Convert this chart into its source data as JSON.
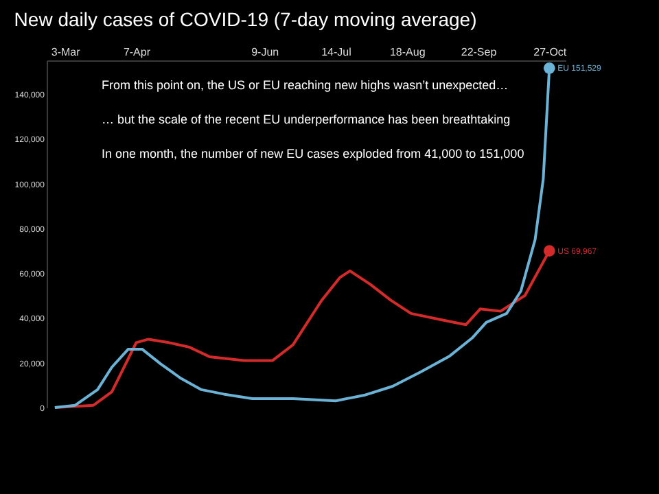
{
  "chart_data": {
    "type": "line",
    "title": "New daily cases of COVID-19 (7-day moving average)",
    "xlim": [
      "--02-22",
      "--11-04"
    ],
    "ylim": [
      0,
      155000
    ],
    "xticks": [
      {
        "value": "--03-03",
        "label": "3-Mar"
      },
      {
        "value": "--04-07",
        "label": "7-Apr"
      },
      {
        "value": "--06-09",
        "label": "9-Jun"
      },
      {
        "value": "--07-14",
        "label": "14-Jul"
      },
      {
        "value": "--08-18",
        "label": "18-Aug"
      },
      {
        "value": "--09-22",
        "label": "22-Sep"
      },
      {
        "value": "--10-27",
        "label": "27-Oct"
      }
    ],
    "yticks": [
      {
        "value": 0,
        "label": "0"
      },
      {
        "value": 20000,
        "label": "20,000"
      },
      {
        "value": 40000,
        "label": "40,000"
      },
      {
        "value": 60000,
        "label": "60,000"
      },
      {
        "value": 80000,
        "label": "80,000"
      },
      {
        "value": 100000,
        "label": "100,000"
      },
      {
        "value": 120000,
        "label": "120,000"
      },
      {
        "value": 140000,
        "label": "140,000"
      }
    ],
    "grid": false,
    "legend": false,
    "line_style": "solid",
    "series": [
      {
        "color": "#d42a2a",
        "x": [
          "--02-26",
          "--03-17",
          "--03-26",
          "--04-07",
          "--04-13",
          "--04-23",
          "--05-03",
          "--05-13",
          "--05-30",
          "--06-13",
          "--06-23",
          "--07-07",
          "--07-16",
          "--07-21",
          "--07-31",
          "--08-10",
          "--08-20",
          "--09-05",
          "--09-16",
          "--09-23",
          "--10-03",
          "--10-15",
          "--10-27"
        ],
        "values": [
          0,
          1000,
          7000,
          29000,
          30500,
          29000,
          27000,
          22700,
          21000,
          21000,
          28000,
          47700,
          58000,
          61000,
          55000,
          48000,
          42000,
          39000,
          37000,
          44000,
          43000,
          50000,
          69967
        ]
      },
      {
        "color": "#6bb3d6",
        "x": [
          "--02-26",
          "--03-08",
          "--03-19",
          "--03-26",
          "--04-03",
          "--04-10",
          "--04-19",
          "--04-29",
          "--05-09",
          "--05-20",
          "--06-03",
          "--06-23",
          "--07-14",
          "--07-28",
          "--08-11",
          "--08-25",
          "--09-08",
          "--09-19",
          "--09-26",
          "--10-06",
          "--10-13",
          "--10-20",
          "--10-24",
          "--10-27"
        ],
        "values": [
          0,
          1000,
          8000,
          18000,
          26000,
          26000,
          19500,
          13000,
          8000,
          6000,
          4000,
          4000,
          3000,
          5500,
          9500,
          16000,
          23000,
          31000,
          38000,
          42000,
          52000,
          75000,
          102000,
          151529
        ]
      }
    ],
    "annotations": [
      "From this point on, the US or EU reaching new highs wasn’t unexpected…",
      "… but the scale of the recent EU underperformance has been breathtaking",
      "In one month, the number of new EU cases exploded from 41,000 to 151,000",
      {
        "text": "EU 151,529",
        "x": "--10-27",
        "y": 151529
      },
      {
        "text": "US 69,967",
        "x": "--10-27",
        "y": 69967
      }
    ]
  }
}
